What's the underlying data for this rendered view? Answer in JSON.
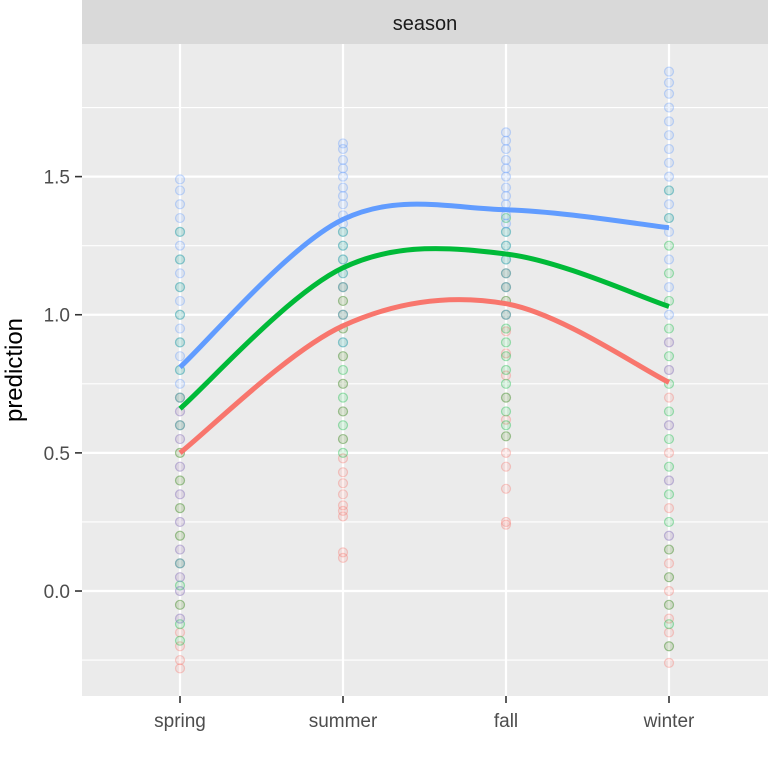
{
  "chart_data": {
    "type": "scatter",
    "facet_strip": "season",
    "xlabel": "",
    "ylabel": "prediction",
    "categories": [
      "spring",
      "summer",
      "fall",
      "winter"
    ],
    "yticks": [
      0.0,
      0.5,
      1.0,
      1.5
    ],
    "ytick_labels": [
      "0.0",
      "0.5",
      "1.0",
      "1.5"
    ],
    "ylim": [
      -0.38,
      1.98
    ],
    "grid": true,
    "legend": "none",
    "series": [
      {
        "color": "#F8766D",
        "line": [
          0.5,
          0.96,
          1.04,
          0.755
        ],
        "points": {
          "spring": [
            -0.28,
            -0.25,
            -0.2,
            -0.15,
            -0.1,
            -0.05,
            0.0,
            0.05,
            0.1,
            0.15,
            0.2,
            0.25,
            0.3,
            0.35,
            0.4,
            0.45,
            0.5,
            0.55,
            0.6,
            0.65,
            0.7
          ],
          "summer": [
            0.12,
            0.14,
            0.27,
            0.29,
            0.31,
            0.35,
            0.39,
            0.43,
            0.48,
            0.55,
            0.65,
            0.75,
            0.85,
            0.95,
            1.0,
            1.05,
            1.1
          ],
          "fall": [
            0.24,
            0.25,
            0.37,
            0.45,
            0.5,
            0.56,
            0.62,
            0.7,
            0.78,
            0.86,
            0.94,
            1.0,
            1.05,
            1.1,
            1.15
          ],
          "winter": [
            -0.26,
            -0.2,
            -0.15,
            -0.1,
            -0.05,
            0.0,
            0.05,
            0.1,
            0.15,
            0.2,
            0.3,
            0.4,
            0.5,
            0.6,
            0.7,
            0.8,
            0.9
          ]
        }
      },
      {
        "color": "#00BA38",
        "line": [
          0.66,
          1.17,
          1.22,
          1.03
        ],
        "points": {
          "spring": [
            -0.18,
            -0.12,
            -0.05,
            0.02,
            0.1,
            0.2,
            0.3,
            0.4,
            0.5,
            0.6,
            0.7,
            0.8,
            0.9,
            1.0,
            1.1,
            1.2,
            1.3
          ],
          "summer": [
            0.5,
            0.55,
            0.6,
            0.65,
            0.7,
            0.75,
            0.8,
            0.85,
            0.9,
            0.95,
            1.0,
            1.05,
            1.1,
            1.15,
            1.2,
            1.25,
            1.3
          ],
          "fall": [
            0.56,
            0.6,
            0.65,
            0.7,
            0.75,
            0.8,
            0.85,
            0.9,
            0.95,
            1.0,
            1.05,
            1.1,
            1.15,
            1.2,
            1.25,
            1.3,
            1.35
          ],
          "winter": [
            -0.2,
            -0.12,
            -0.05,
            0.05,
            0.15,
            0.25,
            0.35,
            0.45,
            0.55,
            0.65,
            0.75,
            0.85,
            0.95,
            1.05,
            1.15,
            1.25,
            1.35,
            1.45
          ]
        }
      },
      {
        "color": "#619CFF",
        "line": [
          0.81,
          1.345,
          1.38,
          1.315
        ],
        "points": {
          "spring": [
            -0.1,
            0.0,
            0.05,
            0.1,
            0.15,
            0.25,
            0.35,
            0.45,
            0.55,
            0.6,
            0.65,
            0.7,
            0.75,
            0.8,
            0.85,
            0.9,
            0.95,
            1.0,
            1.05,
            1.1,
            1.15,
            1.2,
            1.25,
            1.3,
            1.35,
            1.4,
            1.45,
            1.49
          ],
          "summer": [
            0.9,
            1.0,
            1.1,
            1.15,
            1.2,
            1.25,
            1.3,
            1.33,
            1.36,
            1.4,
            1.43,
            1.46,
            1.5,
            1.53,
            1.56,
            1.6,
            1.62
          ],
          "fall": [
            1.0,
            1.1,
            1.15,
            1.2,
            1.25,
            1.3,
            1.33,
            1.36,
            1.4,
            1.43,
            1.46,
            1.5,
            1.53,
            1.56,
            1.6,
            1.63,
            1.66
          ],
          "winter": [
            0.2,
            0.4,
            0.6,
            0.8,
            0.9,
            1.0,
            1.1,
            1.2,
            1.3,
            1.35,
            1.4,
            1.45,
            1.5,
            1.55,
            1.6,
            1.65,
            1.7,
            1.75,
            1.8,
            1.84,
            1.88
          ]
        }
      }
    ]
  }
}
